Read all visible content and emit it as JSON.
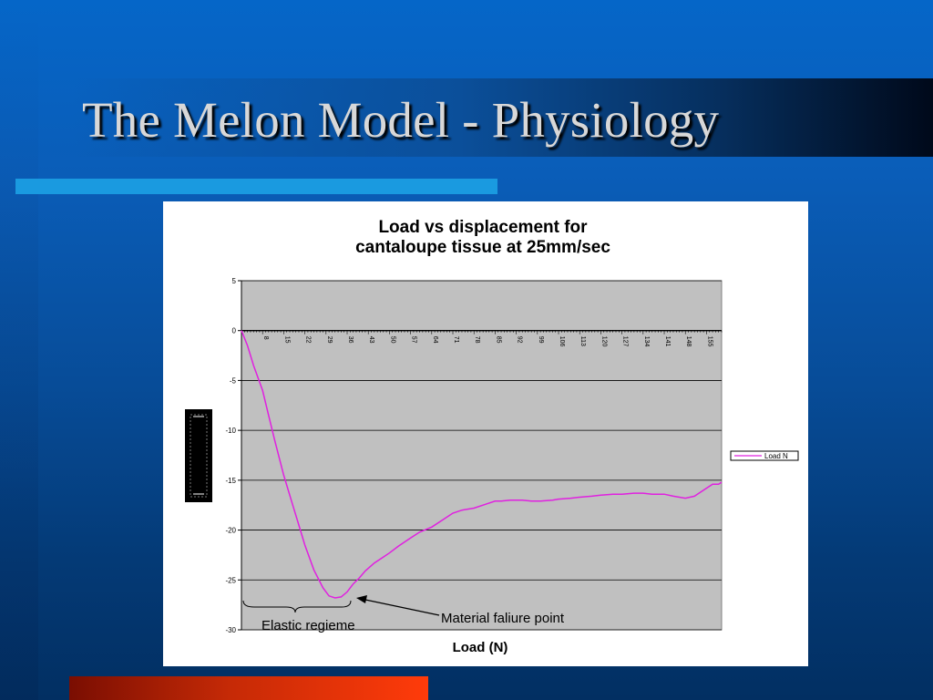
{
  "slide": {
    "title": "The Melon Model - Physiology"
  },
  "colors": {
    "background_top": "#0566c8",
    "background_bottom": "#022f62",
    "accent_bar": "#1a9ae0",
    "bottom_bar": "#ff3b0a",
    "plot_area": "#c0c0c0",
    "series_line": "#e020e0"
  },
  "chart_data": {
    "type": "line",
    "title_line1": "Load vs displacement for",
    "title_line2": "cantaloupe tissue at 25mm/sec",
    "xlabel": "Load (N)",
    "ylabel_image_note": "",
    "ylim": [
      -30,
      5
    ],
    "yticks": [
      5,
      0,
      -5,
      -10,
      -15,
      -20,
      -25,
      -30
    ],
    "grid": true,
    "legend_position": "right",
    "x_tick_labels": [
      "8",
      "15",
      "22",
      "29",
      "36",
      "43",
      "50",
      "57",
      "64",
      "71",
      "78",
      "85",
      "92",
      "99",
      "106",
      "113",
      "120",
      "127",
      "134",
      "141",
      "148",
      "155"
    ],
    "x_range": [
      1,
      160
    ],
    "series": [
      {
        "name": "Load N",
        "x": [
          1,
          3,
          5,
          8,
          10,
          12,
          15,
          18,
          20,
          22,
          25,
          28,
          30,
          32,
          34,
          36,
          38,
          40,
          42,
          45,
          48,
          50,
          53,
          57,
          60,
          64,
          67,
          71,
          74,
          78,
          82,
          85,
          87,
          90,
          94,
          97,
          100,
          104,
          106,
          110,
          113,
          117,
          120,
          124,
          127,
          131,
          134,
          137,
          141,
          144,
          148,
          151,
          153,
          155,
          157,
          159,
          160
        ],
        "y": [
          0,
          -1.5,
          -3.5,
          -6,
          -8.5,
          -11,
          -14.5,
          -17.5,
          -19.5,
          -21.5,
          -24,
          -25.8,
          -26.6,
          -26.8,
          -26.7,
          -26.2,
          -25.4,
          -24.8,
          -24.1,
          -23.3,
          -22.7,
          -22.3,
          -21.6,
          -20.8,
          -20.2,
          -19.7,
          -19.1,
          -18.3,
          -18.0,
          -17.8,
          -17.4,
          -17.1,
          -17.1,
          -17.0,
          -17.0,
          -17.1,
          -17.1,
          -17.0,
          -16.9,
          -16.8,
          -16.7,
          -16.6,
          -16.5,
          -16.4,
          -16.4,
          -16.3,
          -16.3,
          -16.4,
          -16.4,
          -16.6,
          -16.8,
          -16.6,
          -16.2,
          -15.8,
          -15.4,
          -15.4,
          -15.2
        ]
      }
    ],
    "annotations": [
      {
        "text": "Elastic regieme",
        "type": "brace"
      },
      {
        "text": "Material faliure point",
        "type": "arrow"
      }
    ]
  }
}
